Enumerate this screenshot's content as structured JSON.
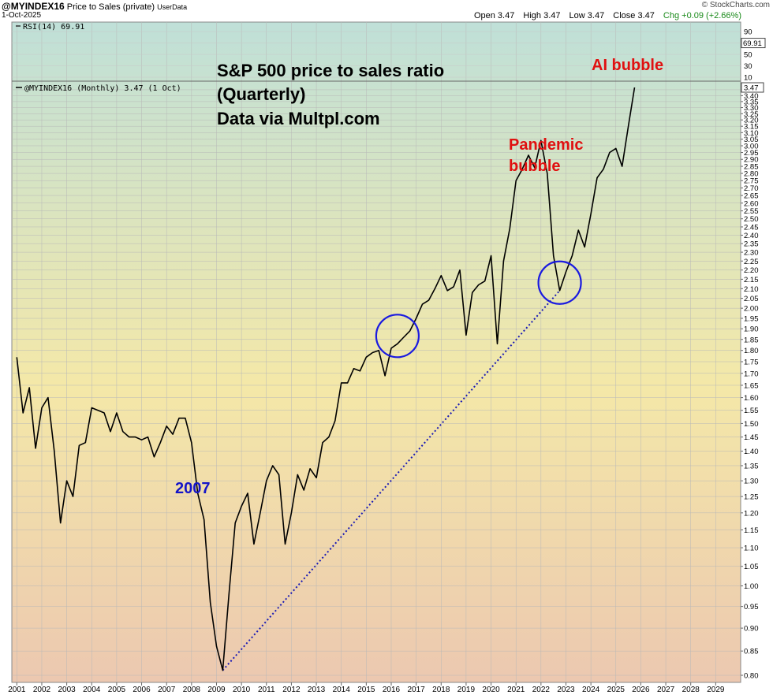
{
  "header": {
    "symbol": "@MYINDEX16",
    "name": "Price to Sales (private)",
    "source_tag": "UserData",
    "date": "1-Oct-2025",
    "watermark": "© StockCharts.com",
    "open": "Open 3.47",
    "high": "High 3.47",
    "low": "Low 3.47",
    "close": "Close 3.47",
    "chg": "Chg +0.09 (+2.66%)",
    "change_color": "#1a8a1a"
  },
  "rsi_panel": {
    "label": "RSI(14) 69.91",
    "value": 69.91,
    "value_label": "69.91",
    "ticks": [
      "90",
      "70",
      "50",
      "30",
      "10"
    ]
  },
  "legend": {
    "label": "@MYINDEX16 (Monthly) 3.47 (1 Oct)",
    "last_label": "3.47"
  },
  "annotations": {
    "title_lines": [
      "S&P 500 price to sales ratio",
      "(Quarterly)",
      "Data via Multpl.com"
    ],
    "ai_bubble": "AI bubble",
    "pandemic_line1": "Pandemic",
    "pandemic_line2": "bubble",
    "year_2007": "2007"
  },
  "colors": {
    "series_line": "#000000",
    "trendline": "#1a1ab4",
    "circles": "#1a1ae0",
    "annotation_red": "#e01010",
    "annotation_blue": "#1414c8",
    "background_top": "#bfe0d8",
    "background_mid": "#f4e8a8",
    "background_bottom": "#ecc8b0"
  },
  "chart_data": {
    "type": "line",
    "title": "",
    "xlabel": "",
    "ylabel": "",
    "ylim": [
      0.8,
      3.47
    ],
    "xlim": [
      2000.8,
      2030.0
    ],
    "grid": true,
    "legend": "top-left",
    "y_scale": "log",
    "y_ticks": [
      "0.80",
      "0.85",
      "0.90",
      "0.95",
      "1.00",
      "1.05",
      "1.10",
      "1.15",
      "1.20",
      "1.25",
      "1.30",
      "1.35",
      "1.40",
      "1.45",
      "1.50",
      "1.55",
      "1.60",
      "1.65",
      "1.70",
      "1.75",
      "1.80",
      "1.85",
      "1.90",
      "1.95",
      "2.00",
      "2.05",
      "2.10",
      "2.15",
      "2.20",
      "2.25",
      "2.30",
      "2.35",
      "2.40",
      "2.45",
      "2.50",
      "2.55",
      "2.60",
      "2.65",
      "2.70",
      "2.75",
      "2.80",
      "2.85",
      "2.90",
      "2.95",
      "3.00",
      "3.05",
      "3.10",
      "3.15",
      "3.20",
      "3.25",
      "3.30",
      "3.35",
      "3.40",
      "3.45"
    ],
    "x_ticks": [
      "2001",
      "2002",
      "2003",
      "2004",
      "2005",
      "2006",
      "2007",
      "2008",
      "2009",
      "2010",
      "2011",
      "2012",
      "2013",
      "2014",
      "2015",
      "2016",
      "2017",
      "2018",
      "2019",
      "2020",
      "2021",
      "2022",
      "2023",
      "2024",
      "2025",
      "2026",
      "2027",
      "2028",
      "2029"
    ],
    "series": [
      {
        "name": "@MYINDEX16 (Monthly)",
        "x": [
          2001.0,
          2001.25,
          2001.5,
          2001.75,
          2002.0,
          2002.25,
          2002.5,
          2002.75,
          2003.0,
          2003.25,
          2003.5,
          2003.75,
          2004.0,
          2004.25,
          2004.5,
          2004.75,
          2005.0,
          2005.25,
          2005.5,
          2005.75,
          2006.0,
          2006.25,
          2006.5,
          2006.75,
          2007.0,
          2007.25,
          2007.5,
          2007.75,
          2008.0,
          2008.25,
          2008.5,
          2008.75,
          2009.0,
          2009.25,
          2009.5,
          2009.75,
          2010.0,
          2010.25,
          2010.5,
          2010.75,
          2011.0,
          2011.25,
          2011.5,
          2011.75,
          2012.0,
          2012.25,
          2012.5,
          2012.75,
          2013.0,
          2013.25,
          2013.5,
          2013.75,
          2014.0,
          2014.25,
          2014.5,
          2014.75,
          2015.0,
          2015.25,
          2015.5,
          2015.75,
          2016.0,
          2016.25,
          2016.5,
          2016.75,
          2017.0,
          2017.25,
          2017.5,
          2017.75,
          2018.0,
          2018.25,
          2018.5,
          2018.75,
          2019.0,
          2019.25,
          2019.5,
          2019.75,
          2020.0,
          2020.25,
          2020.5,
          2020.75,
          2021.0,
          2021.25,
          2021.5,
          2021.75,
          2022.0,
          2022.25,
          2022.5,
          2022.75,
          2023.0,
          2023.25,
          2023.5,
          2023.75,
          2024.0,
          2024.25,
          2024.5,
          2024.75,
          2025.0,
          2025.25,
          2025.5,
          2025.75
        ],
        "values": [
          1.77,
          1.54,
          1.64,
          1.41,
          1.56,
          1.6,
          1.4,
          1.17,
          1.3,
          1.25,
          1.42,
          1.43,
          1.56,
          1.55,
          1.54,
          1.47,
          1.54,
          1.47,
          1.45,
          1.45,
          1.44,
          1.45,
          1.38,
          1.43,
          1.49,
          1.46,
          1.52,
          1.52,
          1.43,
          1.26,
          1.18,
          0.96,
          0.86,
          0.81,
          0.98,
          1.17,
          1.22,
          1.26,
          1.11,
          1.2,
          1.3,
          1.35,
          1.32,
          1.11,
          1.2,
          1.32,
          1.27,
          1.34,
          1.31,
          1.43,
          1.45,
          1.51,
          1.66,
          1.66,
          1.72,
          1.71,
          1.77,
          1.79,
          1.8,
          1.69,
          1.81,
          1.83,
          1.86,
          1.89,
          1.95,
          2.02,
          2.04,
          2.1,
          2.17,
          2.09,
          2.11,
          2.2,
          1.87,
          2.08,
          2.12,
          2.14,
          2.28,
          1.83,
          2.25,
          2.44,
          2.75,
          2.83,
          2.93,
          2.84,
          3.04,
          2.8,
          2.28,
          2.09,
          2.19,
          2.28,
          2.43,
          2.33,
          2.53,
          2.77,
          2.83,
          2.95,
          2.98,
          2.85,
          3.15,
          3.47
        ]
      }
    ],
    "trendline": {
      "x": [
        2009.25,
        2022.75
      ],
      "values": [
        0.81,
        2.09
      ]
    }
  }
}
